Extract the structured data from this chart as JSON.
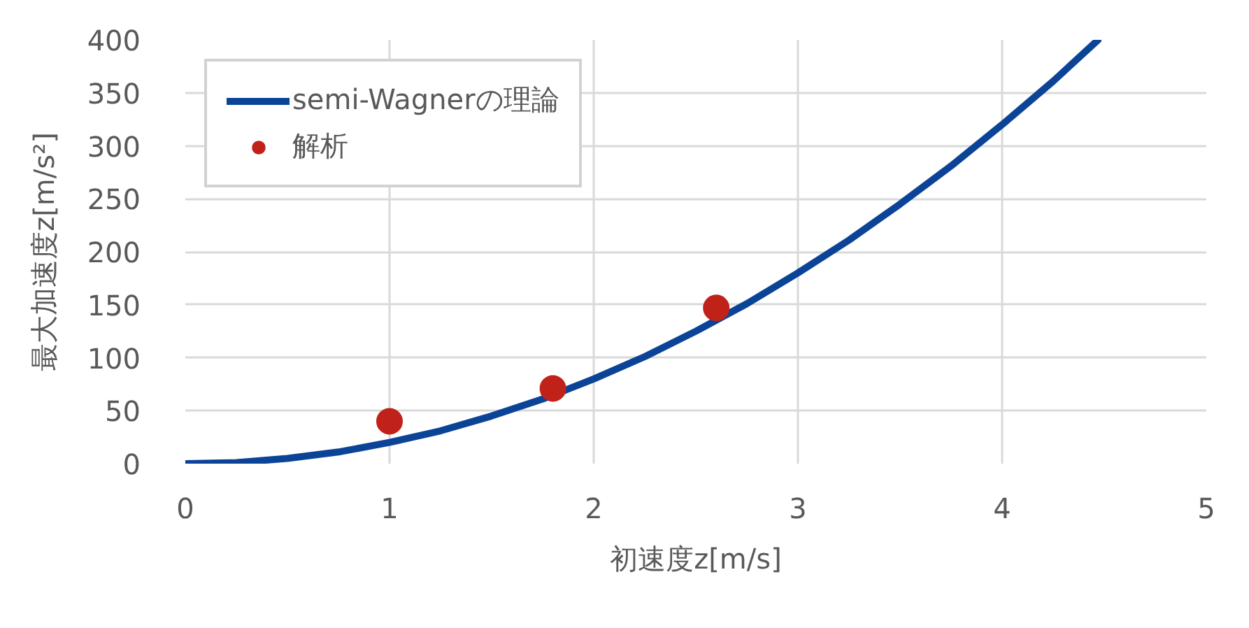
{
  "chart_data": {
    "type": "line",
    "xlabel": "初速度z[m/s]",
    "ylabel": "最大加速度z[m/s²]",
    "xlim": [
      0,
      5
    ],
    "ylim": [
      0,
      400
    ],
    "xticks": [
      0,
      1,
      2,
      3,
      4,
      5
    ],
    "yticks": [
      0,
      50,
      100,
      150,
      200,
      250,
      300,
      350,
      400
    ],
    "grid": true,
    "legend": "top left",
    "series": [
      {
        "name": "semi-Wagnerの理論",
        "color": "#0b4497",
        "line_style": "solid",
        "x": [
          0,
          0.25,
          0.5,
          0.75,
          1,
          1.25,
          1.5,
          1.75,
          2,
          2.25,
          2.5,
          2.75,
          3,
          3.25,
          3.5,
          3.75,
          4,
          4.25,
          4.47
        ],
        "values": [
          0,
          1,
          5,
          11,
          20,
          31,
          45,
          61,
          80,
          101,
          125,
          151,
          180,
          211,
          245,
          281,
          320,
          361,
          400
        ]
      },
      {
        "name": "解析",
        "type": "scatter",
        "color": "#c0221a",
        "marker": "circle",
        "x": [
          1,
          1.8,
          2.6
        ],
        "values": [
          40,
          71,
          147
        ]
      }
    ]
  }
}
